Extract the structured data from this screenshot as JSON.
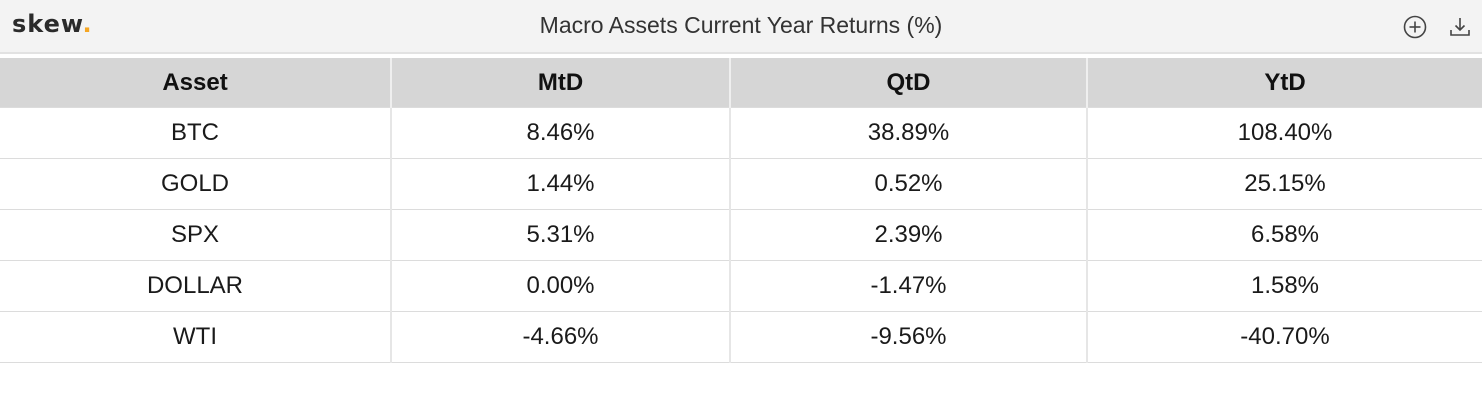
{
  "brand": {
    "logo_text": "skew",
    "logo_dot": ".",
    "accent_color": "#f5a623"
  },
  "header": {
    "title": "Macro Assets Current Year Returns (%)",
    "icons": [
      "add-circle-icon",
      "download-icon"
    ]
  },
  "chart_data": {
    "type": "table",
    "title": "Macro Assets Current Year Returns (%)",
    "columns": [
      "Asset",
      "MtD",
      "QtD",
      "YtD"
    ],
    "rows": [
      [
        "BTC",
        "8.46%",
        "38.89%",
        "108.40%"
      ],
      [
        "GOLD",
        "1.44%",
        "0.52%",
        "25.15%"
      ],
      [
        "SPX",
        "5.31%",
        "2.39%",
        "6.58%"
      ],
      [
        "DOLLAR",
        "0.00%",
        "-1.47%",
        "1.58%"
      ],
      [
        "WTI",
        "-4.66%",
        "-9.56%",
        "-40.70%"
      ]
    ]
  }
}
